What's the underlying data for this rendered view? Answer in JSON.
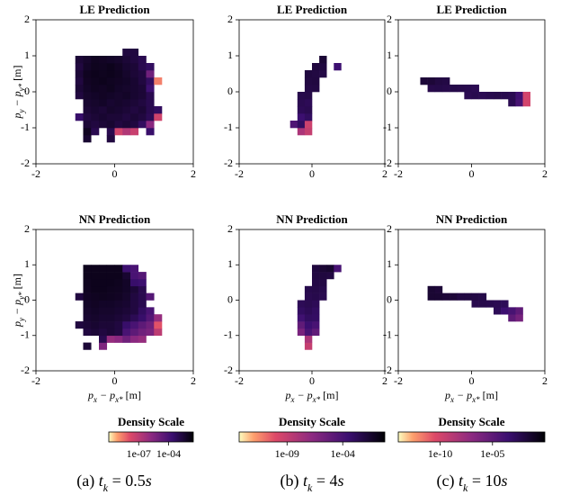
{
  "chart_data": [
    {
      "type": "heatmap",
      "title": "LE Prediction",
      "ylabel": {
        "p": "p",
        "s1": "y",
        "m": " − p",
        "s2": "y*",
        "u": " [m]"
      },
      "xlim": [
        -2,
        2
      ],
      "ylim": [
        -2,
        2
      ],
      "xticks": [
        -2,
        0,
        2
      ],
      "yticks": [
        -2,
        -1,
        0,
        1,
        2
      ],
      "log_color": true,
      "clim": [
        1e-10,
        0.03
      ],
      "xbins": [
        -1.0,
        -0.8,
        -0.6,
        -0.4,
        -0.2,
        0.0,
        0.2,
        0.4,
        0.6,
        0.8,
        1.0,
        1.2
      ],
      "ybins": [
        -1.4,
        -1.2,
        -1.0,
        -0.8,
        -0.6,
        -0.4,
        -0.2,
        0.0,
        0.2,
        0.4,
        0.6,
        0.8,
        1.0,
        1.2
      ],
      "z": [
        [
          null,
          0.004,
          null,
          null,
          0.002,
          null,
          null,
          null,
          null,
          null,
          null
        ],
        [
          null,
          0.008,
          0.001,
          null,
          0.001,
          3e-08,
          2e-07,
          5e-08,
          null,
          0.0003,
          null
        ],
        [
          null,
          0.003,
          0.002,
          0.003,
          0.004,
          0.002,
          0.003,
          0.002,
          0.0005,
          2e-06,
          null
        ],
        [
          0.0003,
          0.002,
          0.003,
          0.004,
          0.003,
          0.003,
          0.002,
          0.003,
          0.002,
          0.0008,
          3e-08
        ],
        [
          null,
          0.003,
          0.004,
          0.003,
          0.005,
          0.004,
          0.003,
          0.002,
          0.003,
          0.001,
          0.0005
        ],
        [
          null,
          0.004,
          0.005,
          0.006,
          0.004,
          0.005,
          0.004,
          0.003,
          0.002,
          0.001,
          null
        ],
        [
          0.002,
          0.005,
          0.006,
          0.007,
          0.006,
          0.005,
          0.006,
          0.004,
          0.003,
          0.001,
          null
        ],
        [
          0.003,
          0.006,
          0.008,
          0.007,
          0.009,
          0.006,
          0.005,
          0.004,
          0.003,
          0.0002,
          null
        ],
        [
          0.002,
          0.007,
          0.009,
          0.01,
          0.008,
          0.007,
          0.006,
          0.004,
          0.002,
          0.0005,
          2e-09
        ],
        [
          0.003,
          0.008,
          0.01,
          0.009,
          0.01,
          0.008,
          0.005,
          0.003,
          0.002,
          1e-05,
          null
        ],
        [
          0.002,
          0.006,
          0.009,
          0.008,
          0.01,
          0.007,
          0.004,
          0.003,
          0.001,
          0.0005,
          null
        ],
        [
          0.003,
          0.005,
          0.008,
          0.007,
          0.006,
          0.005,
          0.003,
          0.002,
          0.001,
          null,
          null
        ],
        [
          null,
          null,
          null,
          null,
          null,
          null,
          0.002,
          0.002,
          null,
          null,
          null
        ]
      ]
    },
    {
      "type": "heatmap",
      "title": "LE Prediction",
      "xlim": [
        -2,
        2
      ],
      "ylim": [
        -2,
        2
      ],
      "xticks": [
        -2,
        0,
        2
      ],
      "yticks": [
        -2,
        -1,
        0,
        1,
        2
      ],
      "log_color": true,
      "clim": [
        5e-14,
        0.6
      ],
      "xbins": [
        -0.6,
        -0.4,
        -0.2,
        0.0,
        0.2,
        0.4,
        0.6,
        0.8
      ],
      "ybins": [
        -1.2,
        -1.0,
        -0.8,
        -0.6,
        -0.4,
        -0.2,
        0.0,
        0.2,
        0.4,
        0.6,
        0.8,
        1.0
      ],
      "z": [
        [
          null,
          1e-08,
          1e-09,
          null,
          null,
          null,
          null
        ],
        [
          5e-05,
          0.001,
          5e-10,
          null,
          null,
          null,
          null
        ],
        [
          null,
          0.0003,
          0.001,
          null,
          null,
          null,
          null
        ],
        [
          null,
          0.002,
          0.003,
          null,
          null,
          null,
          null
        ],
        [
          null,
          0.003,
          0.002,
          null,
          null,
          null,
          null
        ],
        [
          null,
          0.004,
          0.005,
          null,
          null,
          null,
          null
        ],
        [
          null,
          null,
          0.006,
          0.007,
          null,
          null,
          null
        ],
        [
          null,
          null,
          0.008,
          0.009,
          null,
          null,
          null
        ],
        [
          null,
          null,
          0.01,
          0.008,
          0.006,
          null,
          null
        ],
        [
          null,
          null,
          null,
          0.009,
          0.01,
          null,
          0.0003
        ],
        [
          null,
          null,
          null,
          null,
          0.02,
          null,
          null
        ]
      ]
    },
    {
      "type": "heatmap",
      "title": "LE Prediction",
      "xlim": [
        -2,
        2
      ],
      "ylim": [
        -2,
        2
      ],
      "xticks": [
        -2,
        0,
        2
      ],
      "yticks": [
        -2,
        -1,
        0,
        1,
        2
      ],
      "log_color": true,
      "clim": [
        1e-14,
        1
      ],
      "xbins": [
        -1.4,
        -1.2,
        -1.0,
        -0.8,
        -0.6,
        -0.4,
        -0.2,
        0.0,
        0.2,
        0.4,
        0.6,
        0.8,
        1.0,
        1.2,
        1.4,
        1.6
      ],
      "ybins": [
        -0.4,
        -0.2,
        0.0,
        0.2,
        0.4
      ],
      "z": [
        [
          null,
          null,
          null,
          null,
          null,
          null,
          null,
          null,
          null,
          null,
          null,
          null,
          0.003,
          0.0001,
          1e-10
        ],
        [
          null,
          null,
          null,
          null,
          null,
          null,
          0.003,
          0.004,
          0.003,
          0.004,
          0.005,
          0.004,
          0.003,
          0.0002,
          1e-10
        ],
        [
          null,
          0.005,
          0.006,
          0.005,
          0.006,
          0.005,
          0.004,
          0.003,
          null,
          null,
          null,
          null,
          null,
          null,
          null
        ],
        [
          0.02,
          0.02,
          0.01,
          0.008,
          null,
          null,
          null,
          null,
          null,
          null,
          null,
          null,
          null,
          null,
          null
        ]
      ]
    },
    {
      "type": "heatmap",
      "title": "NN Prediction",
      "ylabel": {
        "p": "p",
        "s1": "y",
        "m": " − p",
        "s2": "y*",
        "u": " [m]"
      },
      "xlabel": {
        "p": "p",
        "s1": "x",
        "m": " − p",
        "s2": "x*",
        "u": " [m]"
      },
      "xlim": [
        -2,
        2
      ],
      "ylim": [
        -2,
        2
      ],
      "xticks": [
        -2,
        0,
        2
      ],
      "yticks": [
        -2,
        -1,
        0,
        1,
        2
      ],
      "log_color": true,
      "clim": [
        1e-10,
        0.03
      ],
      "xbins": [
        -1.0,
        -0.8,
        -0.6,
        -0.4,
        -0.2,
        0.0,
        0.2,
        0.4,
        0.6,
        0.8,
        1.0,
        1.2
      ],
      "ybins": [
        -1.4,
        -1.2,
        -1.0,
        -0.8,
        -0.6,
        -0.4,
        -0.2,
        0.0,
        0.2,
        0.4,
        0.6,
        0.8,
        1.0
      ],
      "z": [
        [
          null,
          0.003,
          null,
          4e-06,
          null,
          null,
          null,
          null,
          null,
          null,
          null
        ],
        [
          null,
          null,
          null,
          0.001,
          1e-06,
          2e-06,
          1e-05,
          2e-06,
          1e-06,
          null,
          null
        ],
        [
          null,
          0.002,
          0.003,
          0.002,
          0.003,
          0.002,
          0.0001,
          3e-05,
          1e-05,
          5e-06,
          1e-07
        ],
        [
          0.002,
          0.003,
          0.004,
          0.003,
          0.003,
          0.002,
          0.0003,
          0.0001,
          3e-05,
          1e-05,
          1e-08
        ],
        [
          null,
          0.004,
          0.005,
          0.004,
          0.004,
          0.003,
          0.002,
          0.0008,
          0.0003,
          5e-05,
          1e-06
        ],
        [
          null,
          0.005,
          0.006,
          0.005,
          0.005,
          0.004,
          0.003,
          0.002,
          0.0005,
          0.0001,
          null
        ],
        [
          null,
          0.006,
          0.007,
          0.006,
          0.006,
          0.005,
          0.004,
          0.002,
          0.001,
          null,
          null
        ],
        [
          0.002,
          0.007,
          0.008,
          0.009,
          0.008,
          0.007,
          0.005,
          0.002,
          0.001,
          5e-05,
          null
        ],
        [
          null,
          0.008,
          0.01,
          0.01,
          0.009,
          0.008,
          0.006,
          0.003,
          0.001,
          null,
          null
        ],
        [
          null,
          0.009,
          0.01,
          0.01,
          0.01,
          0.009,
          0.006,
          0.0003,
          0.0002,
          null,
          null
        ],
        [
          null,
          0.01,
          0.01,
          0.01,
          0.01,
          0.01,
          0.004,
          0.0001,
          5e-05,
          null,
          null
        ],
        [
          null,
          0.01,
          0.01,
          0.01,
          0.01,
          0.01,
          0.0002,
          0.0001,
          null,
          null,
          null
        ]
      ]
    },
    {
      "type": "heatmap",
      "title": "NN Prediction",
      "xlabel": {
        "p": "p",
        "s1": "x",
        "m": " − p",
        "s2": "x*",
        "u": " [m]"
      },
      "xlim": [
        -2,
        2
      ],
      "ylim": [
        -2,
        2
      ],
      "xticks": [
        -2,
        0,
        2
      ],
      "yticks": [
        -2,
        -1,
        0,
        1,
        2
      ],
      "log_color": true,
      "clim": [
        5e-14,
        0.6
      ],
      "xbins": [
        -0.4,
        -0.2,
        0.0,
        0.2,
        0.4,
        0.6,
        0.8
      ],
      "ybins": [
        -1.4,
        -1.2,
        -1.0,
        -0.8,
        -0.6,
        -0.4,
        -0.2,
        0.0,
        0.2,
        0.4,
        0.6,
        0.8,
        1.0
      ],
      "z": [
        [
          null,
          1e-09,
          null,
          null,
          null,
          null
        ],
        [
          null,
          1e-08,
          null,
          null,
          null,
          null
        ],
        [
          1e-06,
          0.0001,
          1e-05,
          null,
          null,
          null
        ],
        [
          1e-05,
          0.0003,
          0.0001,
          null,
          null,
          null
        ],
        [
          0.0002,
          0.001,
          0.0008,
          null,
          null,
          null
        ],
        [
          0.001,
          0.002,
          0.001,
          null,
          null,
          null
        ],
        [
          0.002,
          0.003,
          0.002,
          null,
          null,
          null
        ],
        [
          null,
          0.003,
          0.004,
          0.003,
          null,
          null
        ],
        [
          null,
          0.004,
          0.005,
          0.004,
          null,
          null
        ],
        [
          null,
          null,
          0.006,
          0.007,
          null,
          null
        ],
        [
          null,
          null,
          0.008,
          0.01,
          0.008,
          null
        ],
        [
          null,
          null,
          0.01,
          0.02,
          0.03,
          0.0001
        ]
      ]
    },
    {
      "type": "heatmap",
      "title": "NN Prediction",
      "xlabel": {
        "p": "p",
        "s1": "x",
        "m": " − p",
        "s2": "x*",
        "u": " [m]"
      },
      "xlim": [
        -2,
        2
      ],
      "ylim": [
        -2,
        2
      ],
      "xticks": [
        -2,
        0,
        2
      ],
      "yticks": [
        -2,
        -1,
        0,
        1,
        2
      ],
      "log_color": true,
      "clim": [
        1e-14,
        1
      ],
      "xbins": [
        -1.2,
        -1.0,
        -0.8,
        -0.6,
        -0.4,
        -0.2,
        0.0,
        0.2,
        0.4,
        0.6,
        0.8,
        1.0,
        1.2,
        1.4
      ],
      "ybins": [
        -0.6,
        -0.4,
        -0.2,
        0.0,
        0.2,
        0.4
      ],
      "z": [
        [
          null,
          null,
          null,
          null,
          null,
          null,
          null,
          null,
          null,
          null,
          null,
          1e-05,
          1e-06
        ],
        [
          null,
          null,
          null,
          null,
          null,
          null,
          null,
          null,
          null,
          0.002,
          0.0003,
          0.0001,
          1e-05
        ],
        [
          null,
          null,
          null,
          null,
          null,
          null,
          0.004,
          0.005,
          0.004,
          0.003,
          0.002,
          null,
          null
        ],
        [
          0.03,
          0.03,
          0.02,
          0.02,
          0.01,
          0.01,
          0.008,
          0.006,
          null,
          null,
          null,
          null,
          null
        ],
        [
          0.03,
          0.02,
          null,
          null,
          null,
          null,
          null,
          null,
          null,
          null,
          null,
          null,
          null
        ]
      ]
    }
  ],
  "colorbars": [
    {
      "title": "Density Scale",
      "clim": [
        1e-10,
        0.03
      ],
      "ticks": [
        {
          "value": 1e-07,
          "label": "1e-07"
        },
        {
          "value": 0.0001,
          "label": "1e-04"
        }
      ]
    },
    {
      "title": "Density Scale",
      "clim": [
        5e-14,
        0.6
      ],
      "ticks": [
        {
          "value": 1e-09,
          "label": "1e-09"
        },
        {
          "value": 0.0001,
          "label": "1e-04"
        }
      ]
    },
    {
      "title": "Density Scale",
      "clim": [
        1e-14,
        1
      ],
      "ticks": [
        {
          "value": 1e-10,
          "label": "1e-10"
        },
        {
          "value": 1e-05,
          "label": "1e-05"
        }
      ]
    }
  ],
  "captions": [
    {
      "label": "(a)",
      "t": "t",
      "sub": "k",
      "eq": " = 0.5",
      "unit": "s"
    },
    {
      "label": "(b)",
      "t": "t",
      "sub": "k",
      "eq": " = 4",
      "unit": "s"
    },
    {
      "label": "(c)",
      "t": "t",
      "sub": "k",
      "eq": " = 10",
      "unit": "s"
    }
  ]
}
